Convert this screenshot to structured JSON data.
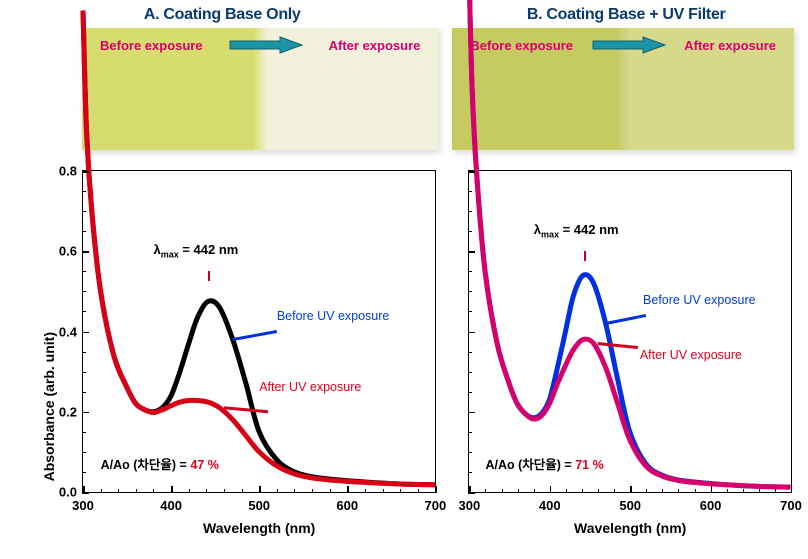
{
  "panels": {
    "A": {
      "title": "A. Coating Base Only",
      "swatch": {
        "before_label": "Before exposure",
        "after_label": "After exposure",
        "before_color": "#d7dc6e",
        "after_color": "#f2f1db",
        "arrow_fill": "#1c94a6",
        "arrow_stroke": "#135f6c"
      },
      "chart": {
        "type": "line",
        "xlim": [
          300,
          700
        ],
        "xtick_step": 100,
        "x_minor_step": 20,
        "ylim": [
          0.0,
          0.8
        ],
        "ytick_step": 0.2,
        "y_minor_step": 0.05,
        "xlabel": "Wavelength  (nm)",
        "ylabel": "Absorbance (arb. unit)",
        "background_color": "#ffffff",
        "axis_color": "#000000",
        "label_fontsize": 14,
        "tick_fontsize": 13,
        "line_width": 1.6,
        "lambda_max_nm": 442,
        "lambda_label": "λmax = 442 nm",
        "aao_label": "A/Ao (차단율)  =",
        "aao_value": "47  %",
        "legend_before": "Before UV exposure",
        "legend_after": "After UV exposure",
        "series": [
          {
            "name": "before",
            "color": "#000000",
            "x": [
              300,
              304,
              310,
              320,
              335,
              350,
              360,
              370,
              380,
              390,
              400,
              410,
              420,
              430,
              442,
              455,
              470,
              485,
              500,
              520,
              540,
              560,
              580,
              620,
              660,
              700
            ],
            "y": [
              1.2,
              0.9,
              0.7,
              0.5,
              0.34,
              0.26,
              0.22,
              0.205,
              0.2,
              0.21,
              0.24,
              0.3,
              0.37,
              0.435,
              0.475,
              0.46,
              0.38,
              0.27,
              0.15,
              0.08,
              0.05,
              0.038,
              0.032,
              0.025,
              0.02,
              0.018
            ]
          },
          {
            "name": "after",
            "color": "#d80015",
            "x": [
              300,
              304,
              310,
              320,
              335,
              350,
              360,
              370,
              380,
              390,
              400,
              410,
              420,
              430,
              442,
              455,
              470,
              485,
              500,
              520,
              540,
              560,
              580,
              620,
              660,
              700
            ],
            "y": [
              1.2,
              0.9,
              0.7,
              0.5,
              0.34,
              0.26,
              0.22,
              0.205,
              0.198,
              0.205,
              0.215,
              0.224,
              0.228,
              0.228,
              0.224,
              0.21,
              0.18,
              0.14,
              0.1,
              0.065,
              0.045,
              0.035,
              0.03,
              0.024,
              0.02,
              0.018
            ]
          }
        ]
      }
    },
    "B": {
      "title": "B. Coating Base + UV Filter",
      "swatch": {
        "before_label": "Before exposure",
        "after_label": "After exposure",
        "before_color": "#c5cb5f",
        "after_color": "#d6d98a",
        "arrow_fill": "#1c94a6",
        "arrow_stroke": "#135f6c"
      },
      "chart": {
        "type": "line",
        "xlim": [
          300,
          700
        ],
        "xtick_step": 100,
        "x_minor_step": 20,
        "ylim": [
          0.0,
          0.8
        ],
        "ytick_step": 0.2,
        "y_minor_step": 0.05,
        "xlabel": "Wavelength  (nm)",
        "ylabel": "",
        "background_color": "#ffffff",
        "axis_color": "#000000",
        "label_fontsize": 14,
        "tick_fontsize": 13,
        "line_width": 1.6,
        "lambda_max_nm": 442,
        "lambda_label": "λmax = 442 nm",
        "aao_label": "A/Ao (차단율)  =",
        "aao_value": "71  %",
        "legend_before": "Before UV exposure",
        "legend_after": "After UV exposure",
        "series": [
          {
            "name": "before",
            "color": "#0030e0",
            "x": [
              300,
              304,
              310,
              320,
              335,
              350,
              360,
              370,
              380,
              390,
              400,
              410,
              420,
              430,
              442,
              455,
              470,
              485,
              500,
              520,
              540,
              560,
              580,
              620,
              660,
              700
            ],
            "y": [
              1.3,
              1.0,
              0.78,
              0.55,
              0.37,
              0.27,
              0.22,
              0.195,
              0.185,
              0.195,
              0.23,
              0.31,
              0.4,
              0.49,
              0.54,
              0.52,
              0.42,
              0.28,
              0.15,
              0.07,
              0.042,
              0.03,
              0.025,
              0.018,
              0.014,
              0.012
            ]
          },
          {
            "name": "after",
            "color": "#d6006c",
            "x": [
              300,
              304,
              310,
              320,
              335,
              350,
              360,
              370,
              380,
              390,
              400,
              410,
              420,
              430,
              442,
              455,
              470,
              485,
              500,
              520,
              540,
              560,
              580,
              620,
              660,
              700
            ],
            "y": [
              1.3,
              1.0,
              0.78,
              0.55,
              0.37,
              0.27,
              0.22,
              0.195,
              0.182,
              0.19,
              0.22,
              0.27,
              0.315,
              0.355,
              0.38,
              0.37,
              0.31,
              0.22,
              0.13,
              0.065,
              0.04,
              0.029,
              0.024,
              0.018,
              0.014,
              0.012
            ]
          }
        ]
      }
    }
  }
}
